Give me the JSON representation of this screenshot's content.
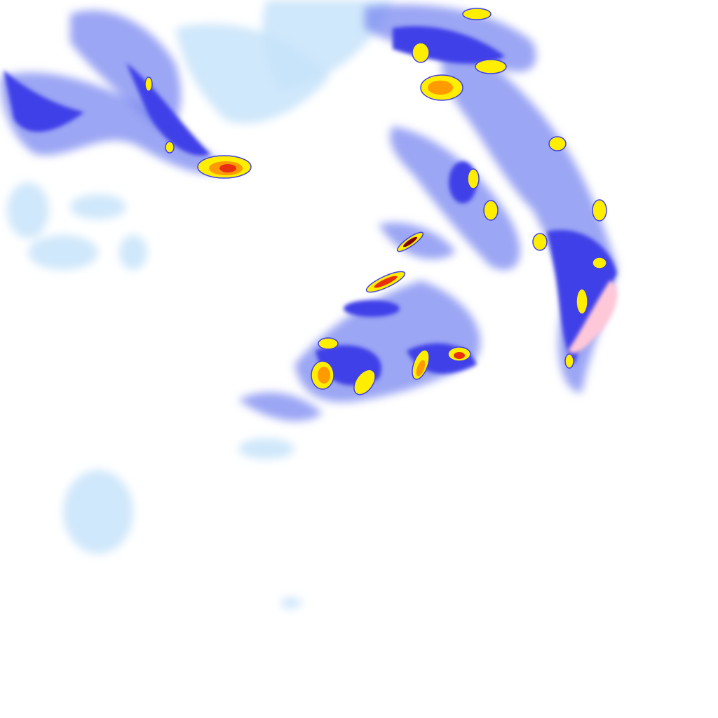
{
  "map": {
    "type": "radar-reflectivity-tile",
    "background": "#ffffff",
    "palette": {
      "very_light": "#c8e4fa",
      "light": "#9fc8f5",
      "medium": "#7a88f0",
      "strong": "#4040e8",
      "moderate_heavy": "#ffee00",
      "heavy": "#ff9a00",
      "very_heavy": "#e83010",
      "extreme": "#800000",
      "mixed": "#ffc8d8"
    }
  }
}
